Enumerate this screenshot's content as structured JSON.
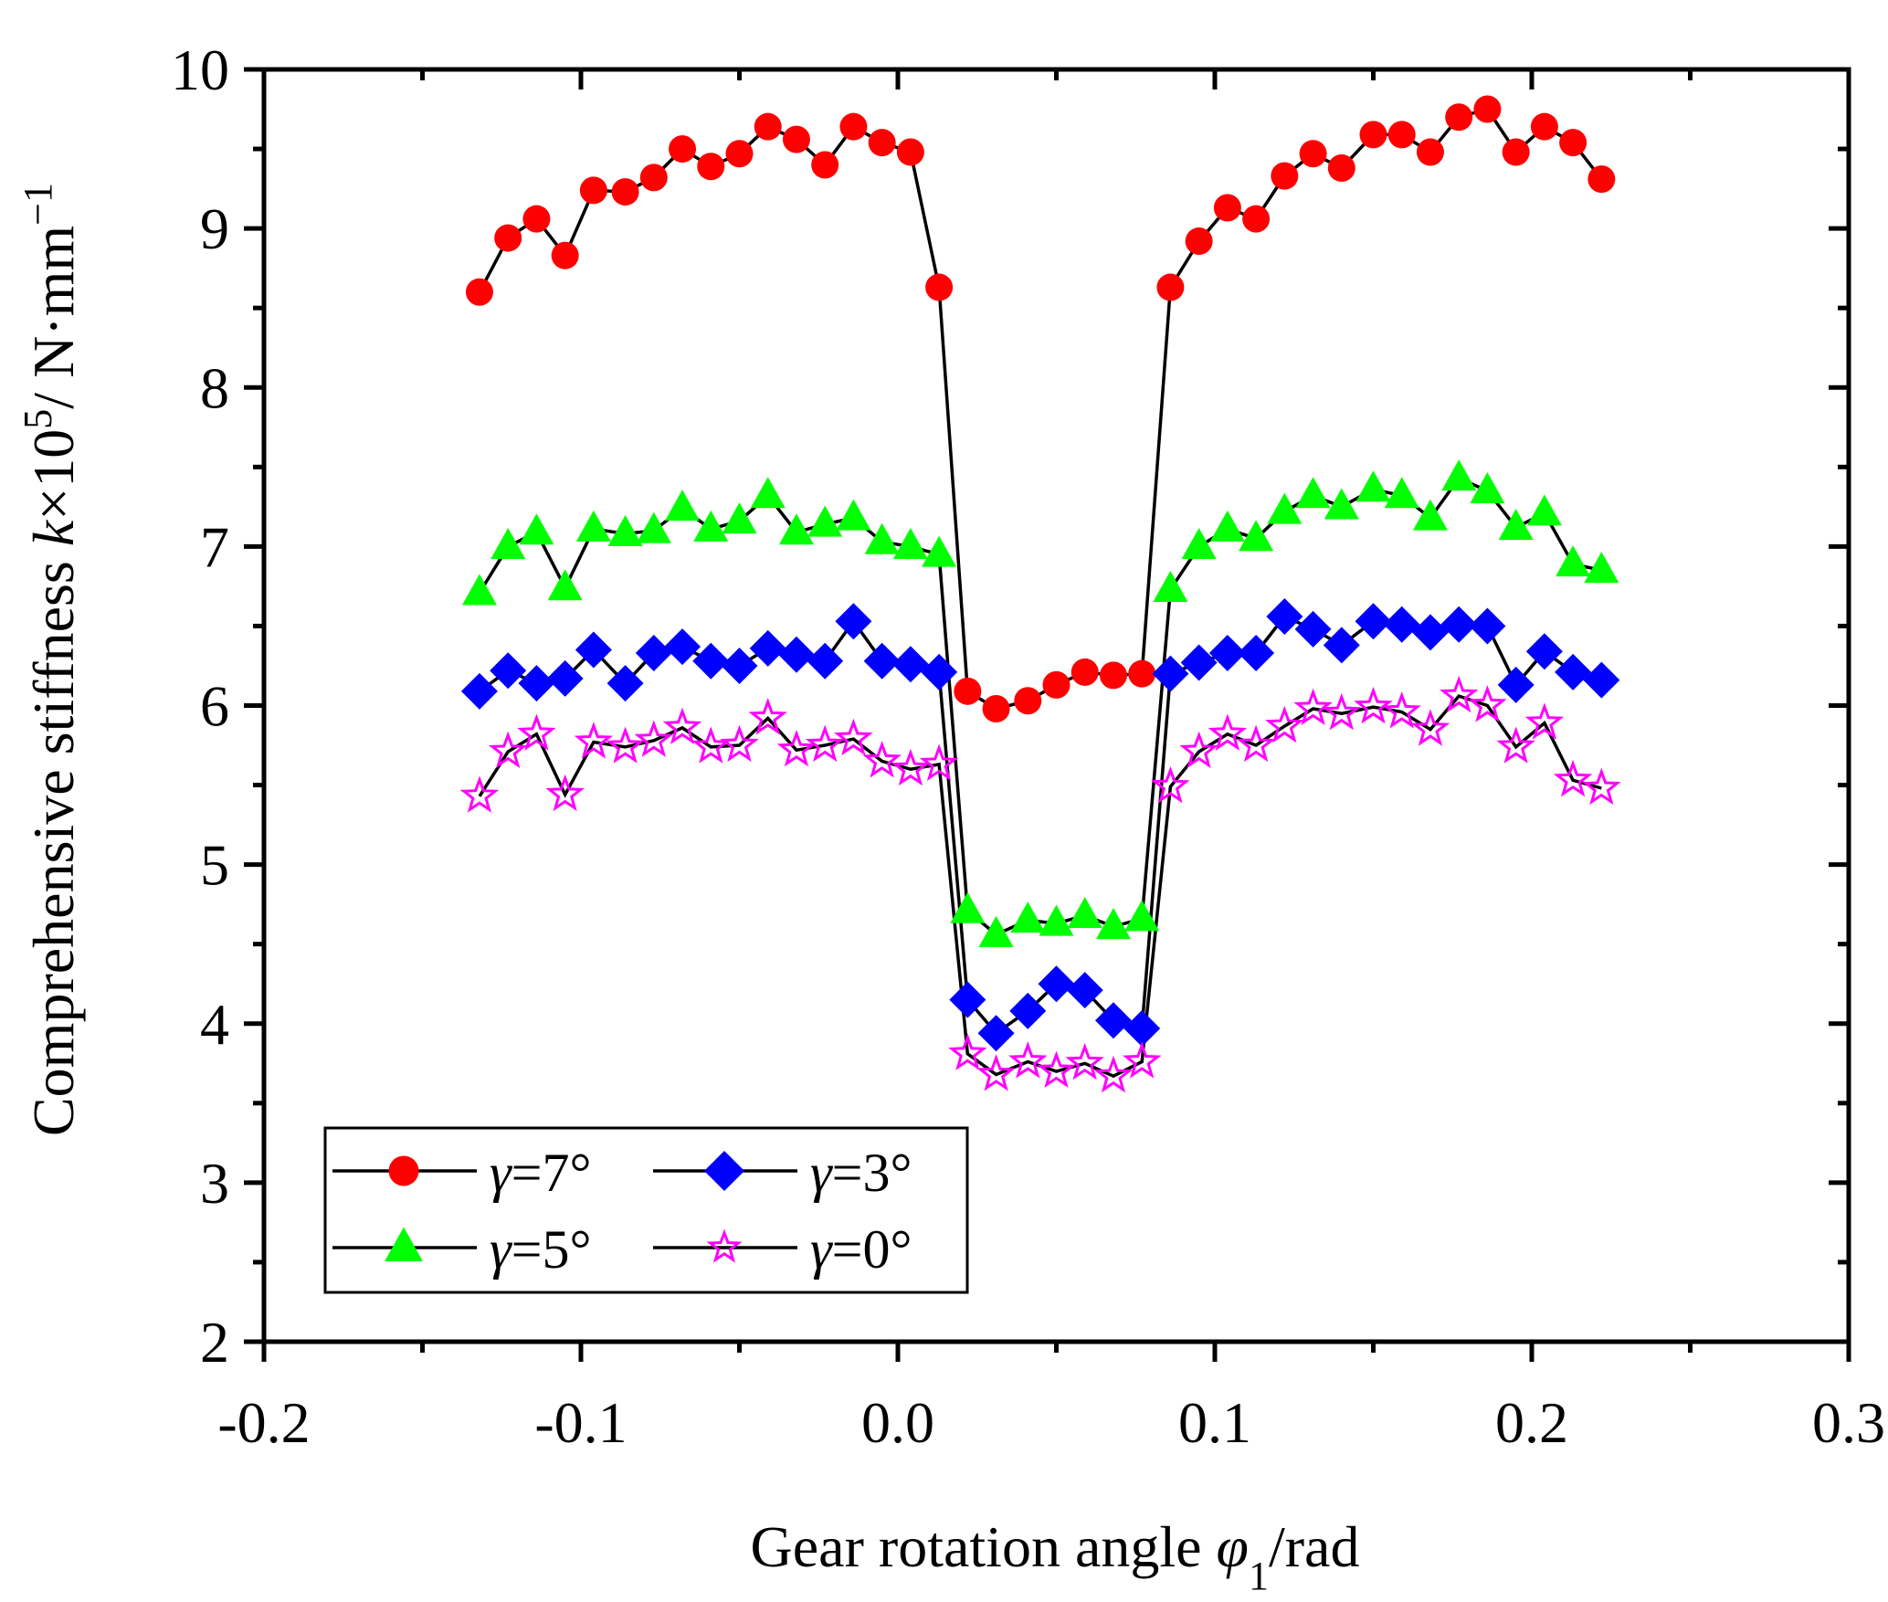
{
  "chart_data": {
    "type": "scatter",
    "title": "",
    "xlabel": "Gear rotation angle φ1/rad",
    "xlabel_parts": {
      "main": "Gear rotation angle ",
      "symbol": "φ",
      "subscript": "1",
      "unit": "/rad"
    },
    "ylabel": "Comprehensive stiffness k×10^5/ N·mm^-1",
    "ylabel_parts": {
      "main": "Comprehensive stiffness ",
      "symbol": "k",
      "times": "×10",
      "exp": "5",
      "unit": "/ N·mm",
      "unit_exp": "−1"
    },
    "xlim": [
      -0.2,
      0.3
    ],
    "ylim": [
      2,
      10
    ],
    "x_ticks": [
      -0.2,
      -0.1,
      0.0,
      0.1,
      0.2,
      0.3
    ],
    "x_tick_labels": [
      "-0.2",
      "-0.1",
      "0.0",
      "0.1",
      "0.2",
      "0.3"
    ],
    "y_ticks": [
      2,
      3,
      4,
      5,
      6,
      7,
      8,
      9,
      10
    ],
    "y_tick_labels": [
      "2",
      "3",
      "4",
      "5",
      "6",
      "7",
      "8",
      "9",
      "10"
    ],
    "grid": false,
    "legend_position": "bottom-left",
    "x": [
      -0.132,
      -0.123,
      -0.114,
      -0.105,
      -0.096,
      -0.086,
      -0.077,
      -0.068,
      -0.059,
      -0.05,
      -0.041,
      -0.032,
      -0.023,
      -0.014,
      -0.005,
      0.004,
      0.013,
      0.022,
      0.031,
      0.041,
      0.05,
      0.059,
      0.068,
      0.077,
      0.086,
      0.095,
      0.104,
      0.113,
      0.122,
      0.131,
      0.14,
      0.15,
      0.159,
      0.168,
      0.177,
      0.186,
      0.195,
      0.204,
      0.213,
      0.222
    ],
    "series": [
      {
        "name": "γ=7°",
        "symbol": "γ",
        "label_value": "=7°",
        "marker": "circle",
        "color": "#ff0000",
        "values": [
          8.6,
          8.94,
          9.06,
          8.83,
          9.24,
          9.23,
          9.32,
          9.5,
          9.39,
          9.47,
          9.64,
          9.56,
          9.4,
          9.64,
          9.54,
          9.48,
          8.63,
          6.09,
          5.98,
          6.03,
          6.13,
          6.21,
          6.19,
          6.2,
          8.63,
          8.92,
          9.13,
          9.06,
          9.33,
          9.47,
          9.38,
          9.59,
          9.59,
          9.48,
          9.7,
          9.75,
          9.48,
          9.64,
          9.54,
          9.31
        ]
      },
      {
        "name": "γ=3°",
        "symbol": "γ",
        "label_value": "=3°",
        "marker": "diamond",
        "color": "#0000ff",
        "values": [
          6.09,
          6.22,
          6.14,
          6.17,
          6.35,
          6.14,
          6.33,
          6.37,
          6.28,
          6.25,
          6.36,
          6.32,
          6.28,
          6.53,
          6.28,
          6.26,
          6.21,
          4.15,
          3.94,
          4.08,
          4.25,
          4.21,
          4.02,
          3.97,
          6.2,
          6.27,
          6.33,
          6.33,
          6.56,
          6.48,
          6.38,
          6.53,
          6.51,
          6.46,
          6.51,
          6.5,
          6.13,
          6.34,
          6.21,
          6.16
        ]
      },
      {
        "name": "γ=5°",
        "symbol": "γ",
        "label_value": "=5°",
        "marker": "triangle",
        "color": "#00ff00",
        "values": [
          6.71,
          7.0,
          7.09,
          6.74,
          7.11,
          7.08,
          7.1,
          7.24,
          7.11,
          7.16,
          7.32,
          7.09,
          7.14,
          7.18,
          7.03,
          7.0,
          6.95,
          4.71,
          4.56,
          4.65,
          4.63,
          4.68,
          4.61,
          4.66,
          6.73,
          7.0,
          7.11,
          7.05,
          7.22,
          7.32,
          7.25,
          7.36,
          7.32,
          7.18,
          7.43,
          7.35,
          7.12,
          7.21,
          6.89,
          6.85
        ]
      },
      {
        "name": "γ=0°",
        "symbol": "γ",
        "label_value": "=0°",
        "marker": "star-open",
        "color": "#ff00ff",
        "values": [
          5.43,
          5.71,
          5.82,
          5.44,
          5.77,
          5.74,
          5.78,
          5.86,
          5.74,
          5.75,
          5.92,
          5.72,
          5.75,
          5.79,
          5.65,
          5.6,
          5.63,
          3.81,
          3.68,
          3.76,
          3.7,
          3.75,
          3.67,
          3.76,
          5.49,
          5.71,
          5.82,
          5.75,
          5.87,
          5.98,
          5.95,
          5.99,
          5.96,
          5.85,
          6.06,
          6.0,
          5.74,
          5.89,
          5.53,
          5.48
        ]
      }
    ],
    "line_color": "#000000"
  }
}
